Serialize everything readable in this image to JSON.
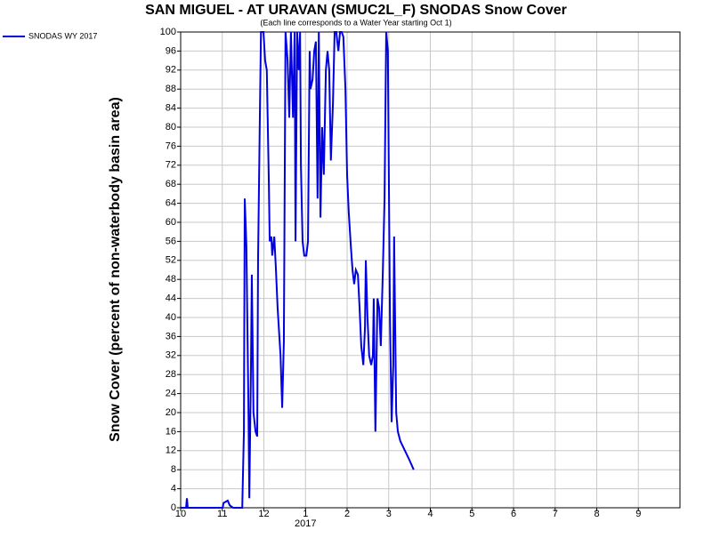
{
  "chart_data": {
    "type": "line",
    "title": "SAN MIGUEL - AT URAVAN (SMUC2L_F) SNODAS Snow Cover",
    "subtitle": "(Each line corresponds to a Water Year starting Oct 1)",
    "y_label": "Snow Cover (percent of non-waterbody basin area)",
    "x": [
      0,
      0.13,
      0.15,
      0.17,
      1.01,
      1.03,
      1.13,
      1.18,
      1.26,
      1.48,
      1.52,
      1.54,
      1.58,
      1.63,
      1.65,
      1.69,
      1.71,
      1.75,
      1.8,
      1.84,
      1.86,
      1.9,
      1.93,
      1.99,
      2.03,
      2.07,
      2.12,
      2.14,
      2.18,
      2.2,
      2.25,
      2.29,
      2.33,
      2.4,
      2.44,
      2.48,
      2.52,
      2.57,
      2.61,
      2.65,
      2.7,
      2.74,
      2.76,
      2.8,
      2.84,
      2.87,
      2.89,
      2.93,
      2.97,
      3.02,
      3.06,
      3.1,
      3.12,
      3.17,
      3.21,
      3.25,
      3.29,
      3.32,
      3.36,
      3.4,
      3.44,
      3.49,
      3.53,
      3.57,
      3.61,
      3.66,
      3.7,
      3.74,
      3.79,
      3.83,
      3.87,
      3.91,
      3.96,
      4.0,
      4.04,
      4.09,
      4.13,
      4.17,
      4.21,
      4.26,
      4.3,
      4.34,
      4.39,
      4.43,
      4.45,
      4.49,
      4.53,
      4.58,
      4.62,
      4.64,
      4.68,
      4.73,
      4.77,
      4.81,
      4.86,
      4.9,
      4.94,
      4.98,
      5.03,
      5.07,
      5.11,
      5.13,
      5.18,
      5.22,
      5.28,
      5.39,
      5.5,
      5.6
    ],
    "series": [
      {
        "name": "SNODAS WY 2017",
        "color": "#0000e0",
        "values": [
          0,
          0,
          2,
          0,
          0,
          1,
          1.5,
          0.5,
          0,
          0,
          16,
          65,
          55,
          20,
          2,
          30,
          49,
          20,
          16,
          15,
          52,
          80,
          100,
          100,
          94,
          92,
          68,
          56,
          57,
          53,
          57,
          50,
          42,
          32,
          21,
          35,
          100,
          94,
          82,
          100,
          82,
          100,
          56,
          100,
          92,
          100,
          72,
          56,
          53,
          53,
          56,
          96,
          88,
          90,
          96,
          98,
          65,
          100,
          61,
          80,
          70,
          92,
          96,
          92,
          73,
          85,
          100,
          100,
          96,
          100,
          100,
          99,
          88,
          70,
          62,
          55,
          50,
          47,
          50,
          49,
          42,
          34,
          30,
          38,
          52,
          40,
          32,
          30,
          32,
          44,
          16,
          44,
          42,
          34,
          50,
          65,
          100,
          96,
          40,
          18,
          30,
          57,
          20,
          16,
          14,
          12,
          10,
          8
        ]
      }
    ],
    "xlim": [
      0,
      12
    ],
    "xticks": [
      {
        "value": 0,
        "label": "10"
      },
      {
        "value": 1,
        "label": "11"
      },
      {
        "value": 2,
        "label": "12"
      },
      {
        "value": 3,
        "label": "1"
      },
      {
        "value": 4,
        "label": "2"
      },
      {
        "value": 5,
        "label": "3"
      },
      {
        "value": 6,
        "label": "4"
      },
      {
        "value": 7,
        "label": "5"
      },
      {
        "value": 8,
        "label": "6"
      },
      {
        "value": 9,
        "label": "7"
      },
      {
        "value": 10,
        "label": "8"
      },
      {
        "value": 11,
        "label": "9"
      }
    ],
    "year_label": {
      "value": 3,
      "label": "2017"
    },
    "ylim": [
      0,
      100
    ],
    "yticks": [
      0,
      4,
      8,
      12,
      16,
      20,
      24,
      28,
      32,
      36,
      40,
      44,
      48,
      52,
      56,
      60,
      64,
      68,
      72,
      76,
      80,
      84,
      88,
      92,
      96,
      100
    ],
    "grid": true
  }
}
